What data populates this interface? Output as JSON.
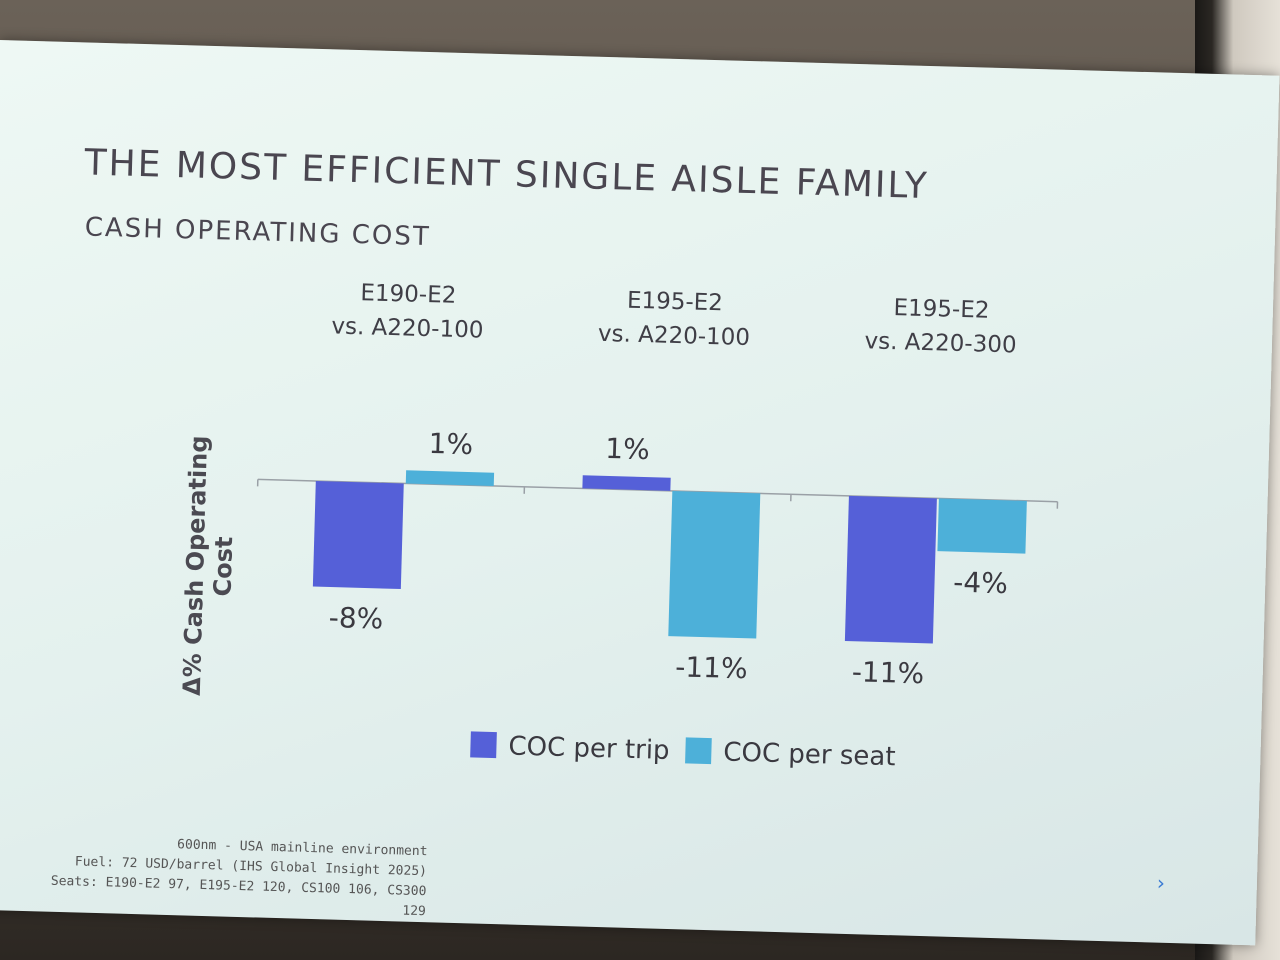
{
  "slide": {
    "title": "THE  MOST EFFICIENT SINGLE AISLE FAMILY",
    "subtitle": "CASH OPERATING COST",
    "footnotes": [
      "600nm - USA mainline environment",
      "Fuel: 72 USD/barrel (IHS Global Insight 2025)",
      "Seats: E190-E2 97, E195-E2 120, CS100 106, CS300 129"
    ]
  },
  "chart_data": {
    "type": "bar",
    "title": "",
    "xlabel": "",
    "ylabel": "Δ% Cash Operating Cost",
    "categories": [
      [
        "E190-E2",
        "vs. A220-100"
      ],
      [
        "E195-E2",
        "vs. A220-100"
      ],
      [
        "E195-E2",
        "vs. A220-300"
      ]
    ],
    "series": [
      {
        "name": "COC per trip",
        "color": "#5560d8",
        "values": [
          -8,
          1,
          -11
        ],
        "labels": [
          "-8%",
          "1%",
          "-11%"
        ]
      },
      {
        "name": "COC per seat",
        "color": "#4db0d9",
        "values": [
          1,
          -11,
          -4
        ],
        "labels": [
          "1%",
          "-11%",
          "-4%"
        ]
      }
    ],
    "ylim": [
      -12,
      2
    ],
    "grid": false,
    "legend": "bottom"
  }
}
